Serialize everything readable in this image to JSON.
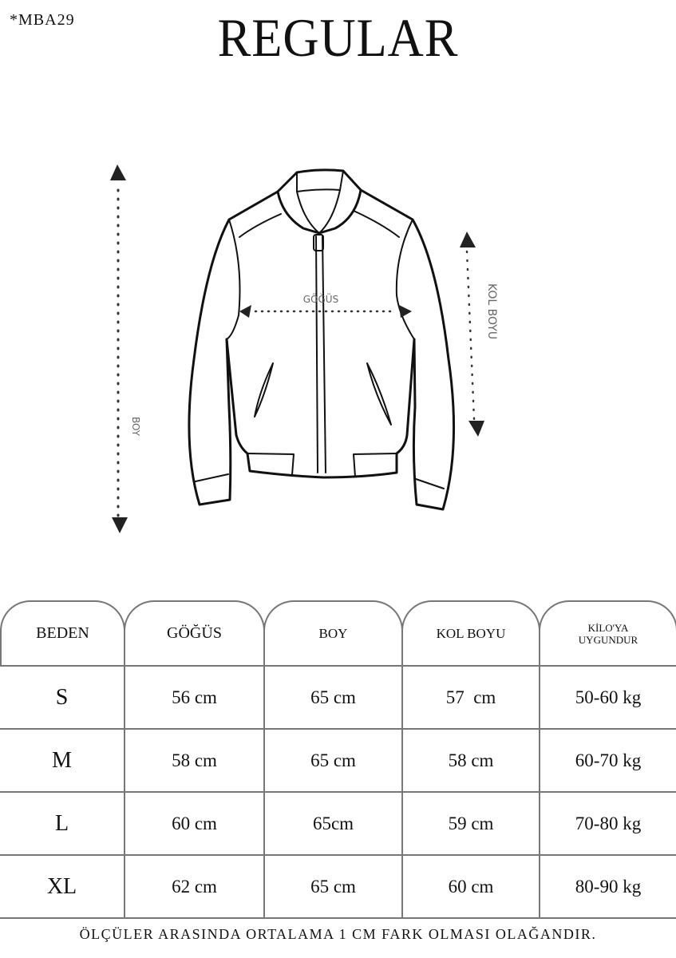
{
  "product_code": "*MBA29",
  "fit_title": "REGULAR",
  "diagram": {
    "labels": {
      "chest": "GÖĞÜS",
      "sleeve_length": "KOL BOYU",
      "length": "BOY"
    }
  },
  "size_table": {
    "headers": [
      "BEDEN",
      "GÖĞÜS",
      "BOY",
      "KOL BOYU",
      "KİLO'YA\nUYGUNDUR"
    ],
    "header_lines": {
      "weight_1": "KİLO'YA",
      "weight_2": "UYGUNDUR"
    },
    "rows": [
      [
        "S",
        "56 cm",
        "65 cm",
        "57  cm",
        "50-60 kg"
      ],
      [
        "M",
        "58 cm",
        "65 cm",
        "58 cm",
        "60-70 kg"
      ],
      [
        "L",
        "60 cm",
        "65cm",
        "59 cm",
        "70-80 kg"
      ],
      [
        "XL",
        "62 cm",
        "65 cm",
        "60 cm",
        "80-90 kg"
      ]
    ]
  },
  "footer_note": "ÖLÇÜLER ARASINDA ORTALAMA 1 CM FARK OLMASI OLAĞANDIR."
}
